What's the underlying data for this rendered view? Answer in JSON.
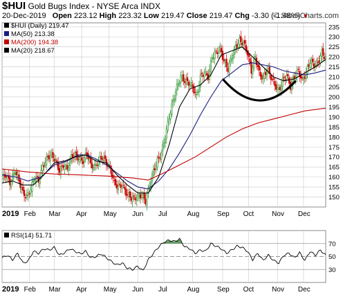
{
  "header": {
    "symbol": "$HUI",
    "name": "Gold Bugs Index - NYSE Arca INDX",
    "date": "20-Dec-2019",
    "open_label": "Open",
    "open": "223.12",
    "high_label": "High",
    "high": "223.32",
    "low_label": "Low",
    "low": "219.47",
    "close_label": "Close",
    "close": "219.47",
    "chg_label": "Chg",
    "chg": "-3.30 (-1.48%)",
    "chg_marker": "▼",
    "brand": "© StockCharts.com"
  },
  "colors": {
    "candle_up": "#1a8a1a",
    "candle_down": "#cc0000",
    "ma50": "#1a1a80",
    "ma200": "#c00000",
    "ma20": "#000000",
    "rsi_line": "#000000",
    "rsi_fill": "#4a8a4a",
    "grid": "#c8c8c8"
  },
  "chart_data": [
    {
      "type": "candlestick",
      "title": "$HUI (Daily) 219.47",
      "legend": [
        {
          "name": "$HUI (Daily)",
          "value": "219.47"
        },
        {
          "name": "MA(50)",
          "value": "213.38"
        },
        {
          "name": "MA(200)",
          "value": "194.38"
        },
        {
          "name": "MA(20)",
          "value": "218.67"
        }
      ],
      "y_ticks": [
        150,
        155,
        160,
        165,
        170,
        175,
        180,
        185,
        190,
        195,
        200,
        205,
        210,
        215,
        220,
        225,
        230,
        235
      ],
      "ylim": [
        145,
        237
      ],
      "x_labels": [
        "2019",
        "Feb",
        "Mar",
        "Apr",
        "May",
        "Jun",
        "Jul",
        "Aug",
        "Sep",
        "Oct",
        "Nov",
        "Dec"
      ],
      "grid": true,
      "price_close": [
        [
          0,
          159.5
        ],
        [
          3,
          161
        ],
        [
          6,
          157
        ],
        [
          10,
          163
        ],
        [
          13,
          158
        ],
        [
          16,
          152
        ],
        [
          19,
          150
        ],
        [
          22,
          154
        ],
        [
          25,
          160
        ],
        [
          28,
          158
        ],
        [
          31,
          165
        ],
        [
          35,
          170
        ],
        [
          38,
          171
        ],
        [
          41,
          168
        ],
        [
          44,
          163
        ],
        [
          47,
          166
        ],
        [
          50,
          164
        ],
        [
          53,
          170
        ],
        [
          56,
          171
        ],
        [
          59,
          169
        ],
        [
          62,
          168
        ],
        [
          65,
          172
        ],
        [
          68,
          166
        ],
        [
          71,
          165
        ],
        [
          74,
          168
        ],
        [
          77,
          170
        ],
        [
          80,
          167
        ],
        [
          83,
          164
        ],
        [
          86,
          157
        ],
        [
          89,
          155
        ],
        [
          92,
          156
        ],
        [
          95,
          152
        ],
        [
          98,
          150
        ],
        [
          101,
          149
        ],
        [
          104,
          150
        ],
        [
          107,
          151
        ],
        [
          110,
          148
        ],
        [
          113,
          156
        ],
        [
          116,
          163
        ],
        [
          119,
          168
        ],
        [
          122,
          172
        ],
        [
          125,
          180
        ],
        [
          128,
          190
        ],
        [
          131,
          198
        ],
        [
          134,
          205
        ],
        [
          137,
          210
        ],
        [
          140,
          208
        ],
        [
          143,
          207
        ],
        [
          146,
          205
        ],
        [
          149,
          200
        ],
        [
          152,
          210
        ],
        [
          155,
          212
        ],
        [
          158,
          210
        ],
        [
          161,
          220
        ],
        [
          164,
          222
        ],
        [
          167,
          224
        ],
        [
          170,
          218
        ],
        [
          173,
          214
        ],
        [
          176,
          220
        ],
        [
          179,
          225
        ],
        [
          182,
          228
        ],
        [
          185,
          227
        ],
        [
          188,
          222
        ],
        [
          191,
          213
        ],
        [
          194,
          220
        ],
        [
          197,
          212
        ],
        [
          200,
          209
        ],
        [
          203,
          214
        ],
        [
          206,
          210
        ],
        [
          209,
          206
        ],
        [
          212,
          203
        ],
        [
          215,
          208
        ],
        [
          218,
          211
        ],
        [
          221,
          205
        ],
        [
          224,
          210
        ],
        [
          227,
          213
        ],
        [
          230,
          208
        ],
        [
          233,
          212
        ],
        [
          236,
          218
        ],
        [
          239,
          216
        ],
        [
          242,
          217
        ],
        [
          245,
          222
        ],
        [
          248,
          219.5
        ]
      ],
      "series": [
        {
          "name": "MA(50)",
          "values": [
            [
              0,
              161
            ],
            [
              10,
              160
            ],
            [
              20,
              158
            ],
            [
              30,
              160
            ],
            [
              40,
              166
            ],
            [
              50,
              168
            ],
            [
              58,
              171
            ],
            [
              65,
              171
            ],
            [
              72,
              169
            ],
            [
              80,
              166
            ],
            [
              88,
              162
            ],
            [
              96,
              158
            ],
            [
              104,
              155
            ],
            [
              112,
              154
            ],
            [
              120,
              158
            ],
            [
              128,
              164
            ],
            [
              136,
              172
            ],
            [
              144,
              181
            ],
            [
              152,
              191
            ],
            [
              160,
              200
            ],
            [
              168,
              208
            ],
            [
              176,
              212
            ],
            [
              184,
              216
            ],
            [
              192,
              217
            ],
            [
              200,
              216
            ],
            [
              208,
              215
            ],
            [
              216,
              213
            ],
            [
              224,
              212
            ],
            [
              232,
              211
            ],
            [
              240,
              212
            ],
            [
              248,
              213.4
            ]
          ]
        },
        {
          "name": "MA(200)",
          "values": [
            [
              0,
              164
            ],
            [
              20,
              162.5
            ],
            [
              40,
              161.5
            ],
            [
              60,
              161
            ],
            [
              80,
              160.5
            ],
            [
              100,
              159.5
            ],
            [
              112,
              158.5
            ],
            [
              124,
              162
            ],
            [
              136,
              166
            ],
            [
              148,
              170
            ],
            [
              160,
              175
            ],
            [
              172,
              180
            ],
            [
              184,
              184
            ],
            [
              196,
              187
            ],
            [
              208,
              189
            ],
            [
              220,
              191
            ],
            [
              232,
              193
            ],
            [
              248,
              194.4
            ]
          ]
        },
        {
          "name": "MA(20)",
          "values": [
            [
              0,
              157
            ],
            [
              8,
              158
            ],
            [
              16,
              156
            ],
            [
              24,
              156
            ],
            [
              32,
              161
            ],
            [
              40,
              167
            ],
            [
              48,
              168
            ],
            [
              56,
              170
            ],
            [
              64,
              171
            ],
            [
              72,
              168
            ],
            [
              80,
              167
            ],
            [
              88,
              161
            ],
            [
              96,
              156
            ],
            [
              104,
              152
            ],
            [
              112,
              152
            ],
            [
              120,
              160
            ],
            [
              128,
              176
            ],
            [
              136,
              195
            ],
            [
              144,
              204
            ],
            [
              152,
              206
            ],
            [
              160,
              211
            ],
            [
              168,
              221
            ],
            [
              176,
              223
            ],
            [
              184,
              225
            ],
            [
              192,
              220
            ],
            [
              200,
              215
            ],
            [
              208,
              210
            ],
            [
              216,
              208
            ],
            [
              224,
              209
            ],
            [
              232,
              212
            ],
            [
              240,
              215
            ],
            [
              248,
              218.7
            ]
          ]
        }
      ],
      "annotation": "rounded bottom arc drawn under Sep–Nov price action"
    },
    {
      "type": "line",
      "title": "RSI(14) 51.71",
      "y_ticks": [
        30,
        50,
        70
      ],
      "ylim": [
        10,
        90
      ],
      "x_labels": [
        "2019",
        "Feb",
        "Mar",
        "Apr",
        "May",
        "Jun",
        "Jul",
        "Aug",
        "Sep",
        "Oct",
        "Nov",
        "Dec"
      ],
      "values": [
        [
          0,
          48
        ],
        [
          4,
          52
        ],
        [
          8,
          45
        ],
        [
          12,
          55
        ],
        [
          16,
          40
        ],
        [
          20,
          43
        ],
        [
          24,
          58
        ],
        [
          28,
          55
        ],
        [
          32,
          62
        ],
        [
          36,
          60
        ],
        [
          40,
          64
        ],
        [
          44,
          52
        ],
        [
          48,
          56
        ],
        [
          52,
          62
        ],
        [
          56,
          58
        ],
        [
          60,
          54
        ],
        [
          64,
          58
        ],
        [
          68,
          48
        ],
        [
          72,
          50
        ],
        [
          76,
          54
        ],
        [
          80,
          48
        ],
        [
          84,
          42
        ],
        [
          88,
          37
        ],
        [
          92,
          40
        ],
        [
          96,
          32
        ],
        [
          100,
          30
        ],
        [
          104,
          35
        ],
        [
          108,
          28
        ],
        [
          112,
          45
        ],
        [
          116,
          55
        ],
        [
          120,
          65
        ],
        [
          124,
          72
        ],
        [
          128,
          75
        ],
        [
          132,
          73
        ],
        [
          136,
          77
        ],
        [
          140,
          65
        ],
        [
          144,
          62
        ],
        [
          148,
          55
        ],
        [
          152,
          60
        ],
        [
          156,
          58
        ],
        [
          160,
          70
        ],
        [
          164,
          66
        ],
        [
          168,
          62
        ],
        [
          172,
          55
        ],
        [
          176,
          60
        ],
        [
          180,
          66
        ],
        [
          184,
          64
        ],
        [
          188,
          58
        ],
        [
          192,
          45
        ],
        [
          196,
          55
        ],
        [
          200,
          44
        ],
        [
          204,
          52
        ],
        [
          208,
          44
        ],
        [
          212,
          40
        ],
        [
          216,
          52
        ],
        [
          220,
          55
        ],
        [
          224,
          48
        ],
        [
          228,
          56
        ],
        [
          232,
          44
        ],
        [
          236,
          58
        ],
        [
          240,
          52
        ],
        [
          244,
          60
        ],
        [
          248,
          51.7
        ]
      ]
    }
  ]
}
